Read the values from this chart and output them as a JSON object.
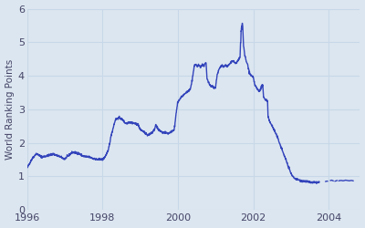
{
  "ylabel": "World Ranking Points",
  "background_color": "#dce6f0",
  "line_color": "#3344bb",
  "line_width": 1.0,
  "xlim": [
    1996.0,
    2004.83
  ],
  "ylim": [
    0,
    6
  ],
  "yticks": [
    0,
    1,
    2,
    3,
    4,
    5,
    6
  ],
  "xticks": [
    1996,
    1998,
    2000,
    2002,
    2004
  ],
  "grid_color": "#c8d8e8",
  "figsize": [
    4.0,
    2.5
  ],
  "dpi": 100
}
